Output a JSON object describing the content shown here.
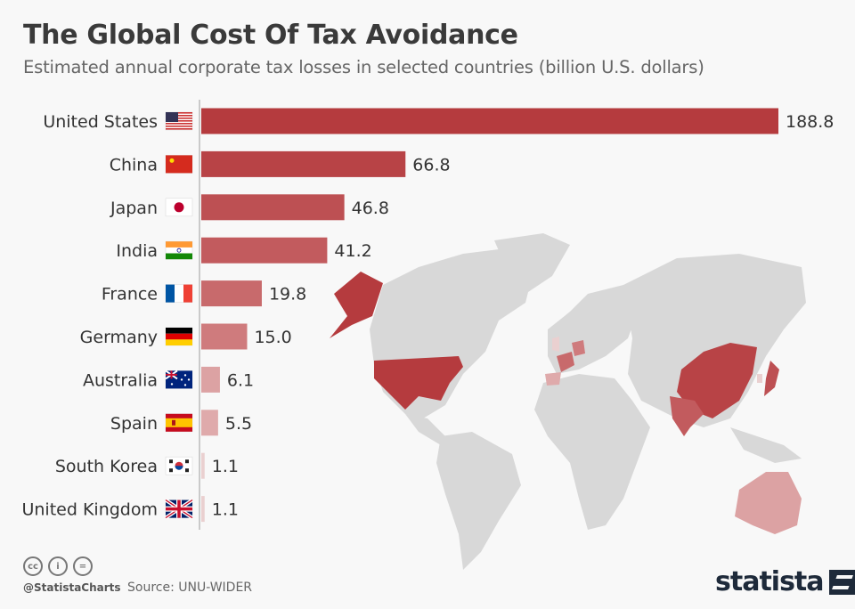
{
  "header": {
    "title": "The Global Cost Of Tax Avoidance",
    "subtitle": "Estimated annual corporate tax losses in selected countries (billion U.S. dollars)"
  },
  "chart_data": {
    "type": "bar",
    "orientation": "horizontal",
    "title": "The Global Cost Of Tax Avoidance",
    "subtitle": "Estimated annual corporate tax losses in selected countries (billion U.S. dollars)",
    "categories": [
      "United States",
      "China",
      "Japan",
      "India",
      "France",
      "Germany",
      "Australia",
      "Spain",
      "South Korea",
      "United Kingdom"
    ],
    "values": [
      188.8,
      66.8,
      46.8,
      41.2,
      19.8,
      15.0,
      6.1,
      5.5,
      1.1,
      1.1
    ],
    "value_labels": [
      "188.8",
      "66.8",
      "46.8",
      "41.2",
      "19.8",
      "15.0",
      "6.1",
      "5.5",
      "1.1",
      "1.1"
    ],
    "flag_icons": [
      "us-flag-icon",
      "cn-flag-icon",
      "jp-flag-icon",
      "in-flag-icon",
      "fr-flag-icon",
      "de-flag-icon",
      "au-flag-icon",
      "es-flag-icon",
      "kr-flag-icon",
      "gb-flag-icon"
    ],
    "bar_colors": [
      "#b53b3e",
      "#b84346",
      "#bd5053",
      "#c25b5e",
      "#c86a6c",
      "#cf7b7d",
      "#dca2a3",
      "#dfaaab",
      "#ead0d0",
      "#ead0d0"
    ],
    "xlim": [
      0,
      188.8
    ],
    "grid": false,
    "legend": "none",
    "background_map": "world map with listed countries highlighted in red shades"
  },
  "footer": {
    "handle": "@StatistaCharts",
    "source": "Source: UNU-WIDER",
    "logo": "statista",
    "license_icons": [
      "cc-icon",
      "by-icon",
      "nd-icon"
    ]
  }
}
